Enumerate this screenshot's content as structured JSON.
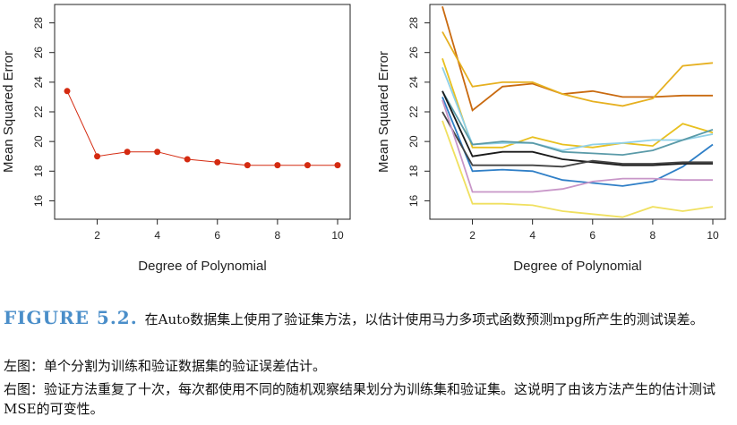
{
  "chart_data": [
    {
      "type": "line",
      "xlabel": "Degree of Polynomial",
      "ylabel": "Mean Squared Error",
      "xlim": [
        1,
        10
      ],
      "ylim": [
        15,
        29
      ],
      "xticks": [
        2,
        4,
        6,
        8,
        10
      ],
      "yticks": [
        16,
        18,
        20,
        22,
        24,
        26,
        28
      ],
      "grid": false,
      "series": [
        {
          "color": "#d42a10",
          "markers": true,
          "x": [
            1,
            2,
            3,
            4,
            5,
            6,
            7,
            8,
            9,
            10
          ],
          "y": [
            23.4,
            19.0,
            19.3,
            19.3,
            18.8,
            18.6,
            18.4,
            18.4,
            18.4,
            18.4
          ]
        }
      ]
    },
    {
      "type": "line",
      "xlabel": "Degree of Polynomial",
      "ylabel": "Mean Squared Error",
      "xlim": [
        1,
        10
      ],
      "ylim": [
        15,
        29
      ],
      "xticks": [
        2,
        4,
        6,
        8,
        10
      ],
      "yticks": [
        16,
        18,
        20,
        22,
        24,
        26,
        28
      ],
      "grid": false,
      "series": [
        {
          "color": "#c96a10",
          "x": [
            1,
            2,
            3,
            4,
            5,
            6,
            7,
            8,
            9,
            10
          ],
          "y": [
            29.1,
            22.1,
            23.7,
            23.9,
            23.2,
            23.4,
            23.0,
            23.0,
            23.1,
            23.1
          ]
        },
        {
          "color": "#e6b020",
          "x": [
            1,
            2,
            3,
            4,
            5,
            6,
            7,
            8,
            9,
            10
          ],
          "y": [
            27.4,
            23.7,
            24.0,
            24.0,
            23.2,
            22.7,
            22.4,
            22.9,
            25.1,
            25.3
          ]
        },
        {
          "color": "#e8c020",
          "x": [
            1,
            2,
            3,
            4,
            5,
            6,
            7,
            8,
            9,
            10
          ],
          "y": [
            25.6,
            19.6,
            19.6,
            20.3,
            19.8,
            19.6,
            19.9,
            19.7,
            21.2,
            20.6
          ]
        },
        {
          "color": "#8fd0e8",
          "x": [
            1,
            2,
            3,
            4,
            5,
            6,
            7,
            8,
            9,
            10
          ],
          "y": [
            25.0,
            19.8,
            19.9,
            19.9,
            19.4,
            19.8,
            19.9,
            20.1,
            20.1,
            20.5
          ]
        },
        {
          "color": "#5a9aa8",
          "x": [
            1,
            2,
            3,
            4,
            5,
            6,
            7,
            8,
            9,
            10
          ],
          "y": [
            23.4,
            19.8,
            20.0,
            19.9,
            19.3,
            19.2,
            19.1,
            19.4,
            20.1,
            20.8
          ]
        },
        {
          "color": "#2f7fc7",
          "x": [
            1,
            2,
            3,
            4,
            5,
            6,
            7,
            8,
            9,
            10
          ],
          "y": [
            23.0,
            18.0,
            18.1,
            18.0,
            17.4,
            17.2,
            17.0,
            17.3,
            18.3,
            19.8
          ]
        },
        {
          "color": "#1a1a1a",
          "x": [
            1,
            2,
            3,
            4,
            5,
            6,
            7,
            8,
            9,
            10
          ],
          "y": [
            23.4,
            19.0,
            19.3,
            19.3,
            18.8,
            18.6,
            18.4,
            18.4,
            18.5,
            18.5
          ]
        },
        {
          "color": "#444444",
          "x": [
            1,
            2,
            3,
            4,
            5,
            6,
            7,
            8,
            9,
            10
          ],
          "y": [
            22.0,
            18.4,
            18.4,
            18.4,
            18.3,
            18.7,
            18.5,
            18.5,
            18.6,
            18.6
          ]
        },
        {
          "color": "#c896c8",
          "x": [
            1,
            2,
            3,
            4,
            5,
            6,
            7,
            8,
            9,
            10
          ],
          "y": [
            22.8,
            16.6,
            16.6,
            16.6,
            16.8,
            17.3,
            17.5,
            17.5,
            17.4,
            17.4
          ]
        },
        {
          "color": "#f0e060",
          "x": [
            1,
            2,
            3,
            4,
            5,
            6,
            7,
            8,
            9,
            10
          ],
          "y": [
            21.4,
            15.8,
            15.8,
            15.7,
            15.3,
            15.1,
            14.9,
            15.6,
            15.3,
            15.6
          ]
        }
      ]
    }
  ],
  "caption": {
    "figure_label": "FIGURE 5.2.",
    "line1": "在Auto数据集上使用了验证集方法，以估计使用马力多项式函数预测mpg所产生的测试误差。",
    "line2": "左图：单个分割为训练和验证数据集的验证误差估计。",
    "line3": "右图：验证方法重复了十次，每次都使用不同的随机观察结果划分为训练集和验证集。这说明了由该方法产生的估计测试MSE的可变性。"
  }
}
